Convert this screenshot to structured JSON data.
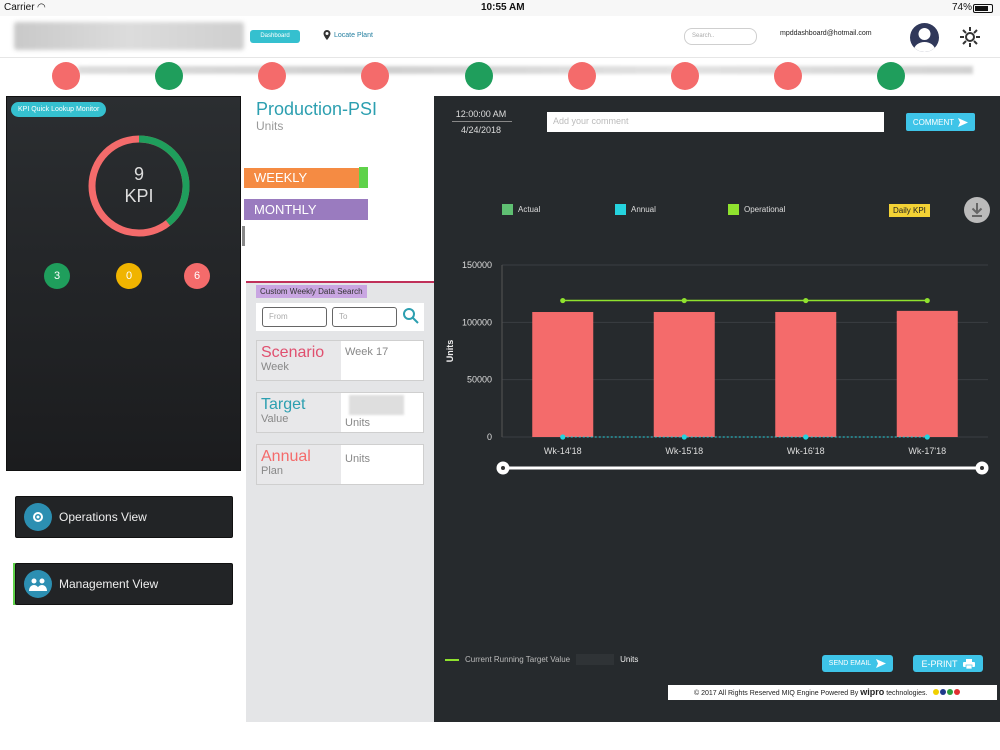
{
  "status": {
    "carrier": "Carrier",
    "time": "10:55 AM",
    "battery": "74%"
  },
  "header": {
    "dashboard": "Dashboard",
    "locate": "Locate Plant",
    "search_placeholder": "Search..",
    "email": "mpddashboard@hotmail.com"
  },
  "kpi_dots": [
    "#f46b6b",
    "#1f9e5c",
    "#f46b6b",
    "#f46b6b",
    "#1f9e5c",
    "#f46b6b",
    "#f46b6b",
    "#f46b6b",
    "#1f9e5c"
  ],
  "left": {
    "monitor_label": "KPI Quick Lookup Monitor",
    "kpi_count": "9",
    "kpi_label": "KPI",
    "counts": {
      "green": "3",
      "yellow": "0",
      "red": "6"
    },
    "operations": "Operations View",
    "management": "Management View"
  },
  "mid": {
    "title": "Production-PSI",
    "unit": "Units",
    "weekly": "WEEKLY",
    "monthly": "MONTHLY",
    "custom_search": "Custom Weekly Data Search",
    "from_placeholder": "From",
    "to_placeholder": "To",
    "scenario": {
      "title": "Scenario",
      "sub": "Week",
      "value": "Week 17"
    },
    "target": {
      "title": "Target",
      "sub": "Value",
      "value": "Units"
    },
    "annual": {
      "title": "Annual",
      "sub": "Plan",
      "value": "Units"
    }
  },
  "right": {
    "time": "12:00:00 AM",
    "date": "4/24/2018",
    "comment_placeholder": "Add your comment",
    "comment_btn": "COMMENT",
    "legend": {
      "actual": "Actual",
      "annual": "Annual",
      "operational": "Operational"
    },
    "daily_kpi": "Daily KPI",
    "current_running": "Current Running Target Value",
    "units": "Units",
    "send_email": "SEND EMAIL",
    "eprint": "E-PRINT",
    "footer_a": "© 2017 All Rights Reserved MIQ Engine Powered By ",
    "footer_b": "wipro",
    "footer_c": " technologies."
  },
  "colors": {
    "actual": "#f46b6b",
    "annual": "#25d3de",
    "operational": "#8fe22e",
    "accent": "#35c0cf"
  },
  "chart_data": {
    "type": "bar",
    "categories": [
      "Wk-14'18",
      "Wk-15'18",
      "Wk-16'18",
      "Wk-17'18"
    ],
    "series": [
      {
        "name": "Actual",
        "type": "bar",
        "values": [
          109000,
          109000,
          109000,
          110000
        ]
      },
      {
        "name": "Annual",
        "type": "line",
        "values": [
          0,
          0,
          0,
          0
        ]
      },
      {
        "name": "Operational",
        "type": "line",
        "values": [
          119000,
          119000,
          119000,
          119000
        ]
      }
    ],
    "ylabel": "Units",
    "yticks": [
      "150000",
      "100000",
      "50000",
      "0"
    ],
    "ylim": [
      0,
      150000
    ]
  }
}
